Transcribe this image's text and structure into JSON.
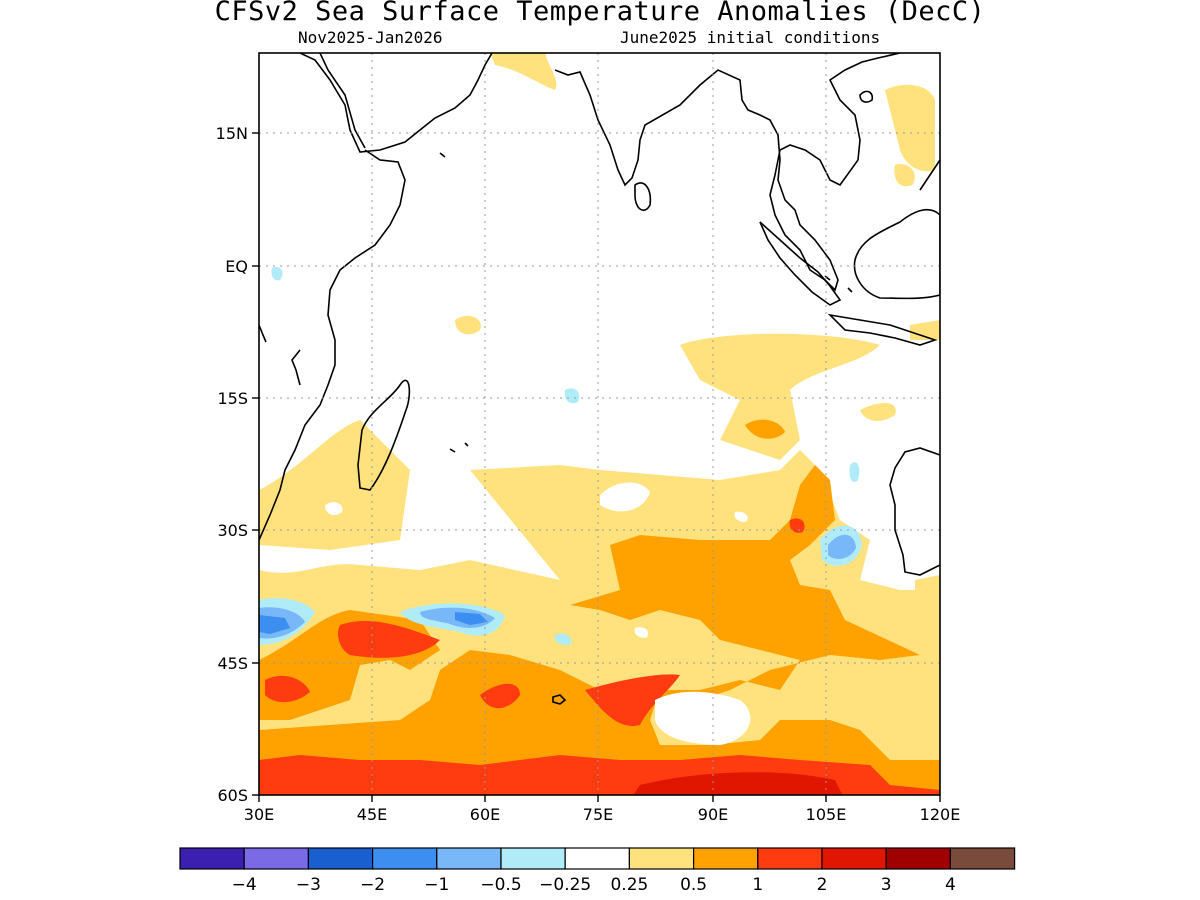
{
  "title": "CFSv2 Sea Surface Temperature Anomalies (DecC)",
  "subtitle_left": "Nov2025-Jan2026",
  "subtitle_right": "June2025 initial conditions",
  "map": {
    "lon_range": [
      30,
      120
    ],
    "lat_range": [
      -60,
      24
    ],
    "lon_ticks": [
      "30E",
      "45E",
      "60E",
      "75E",
      "90E",
      "105E",
      "120E"
    ],
    "lat_ticks": [
      "15N",
      "EQ",
      "15S",
      "30S",
      "45S",
      "60S"
    ]
  },
  "colorbar": {
    "colors": [
      "#3a1fb0",
      "#7a6ae6",
      "#1a5fd0",
      "#3c8ff0",
      "#78b8f8",
      "#b0ecf8",
      "#ffffff",
      "#ffe27e",
      "#ffa200",
      "#ff3c10",
      "#e01600",
      "#a00000",
      "#7a4a3c"
    ],
    "labels": [
      "−4",
      "−3",
      "−2",
      "−1",
      "−0.5",
      "−0.25",
      "0.25",
      "0.5",
      "1",
      "2",
      "3",
      "4"
    ]
  }
}
